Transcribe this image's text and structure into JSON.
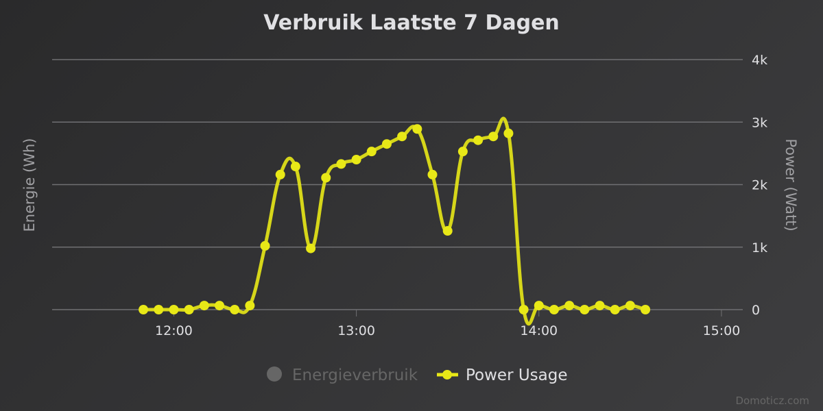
{
  "chart_data": {
    "type": "line",
    "title": "Verbruik Laatste 7 Dagen",
    "ylabel_left": "Energie (Wh)",
    "ylabel_right": "Power (Watt)",
    "xlim": [
      "11:20",
      "15:07"
    ],
    "ylim_right": [
      0,
      4000
    ],
    "x_ticks": [
      "12:00",
      "13:00",
      "14:00",
      "15:00"
    ],
    "y_ticks_right": [
      "0",
      "1k",
      "2k",
      "3k",
      "4k"
    ],
    "y_tick_values": [
      0,
      1000,
      2000,
      3000,
      4000
    ],
    "grid": true,
    "legend_position": "bottom",
    "series": [
      {
        "name": "Energieverbruik",
        "color": "#666666",
        "visible": false,
        "x": [],
        "values": []
      },
      {
        "name": "Power Usage",
        "color": "#e8e817",
        "x": [
          "11:50",
          "11:55",
          "12:00",
          "12:05",
          "12:10",
          "12:15",
          "12:20",
          "12:25",
          "12:30",
          "12:35",
          "12:40",
          "12:45",
          "12:50",
          "12:55",
          "13:00",
          "13:05",
          "13:10",
          "13:15",
          "13:20",
          "13:25",
          "13:30",
          "13:35",
          "13:40",
          "13:45",
          "13:50",
          "13:55",
          "14:00",
          "14:05",
          "14:10",
          "14:15",
          "14:20",
          "14:25",
          "14:30",
          "14:35"
        ],
        "values": [
          0,
          0,
          0,
          0,
          65,
          65,
          0,
          65,
          1020,
          2160,
          2290,
          980,
          2110,
          2330,
          2400,
          2530,
          2650,
          2770,
          2890,
          2160,
          1260,
          2530,
          2710,
          2770,
          2820,
          0,
          65,
          0,
          65,
          0,
          65,
          0,
          65,
          0
        ]
      }
    ]
  },
  "watermark": "Domoticz.com"
}
